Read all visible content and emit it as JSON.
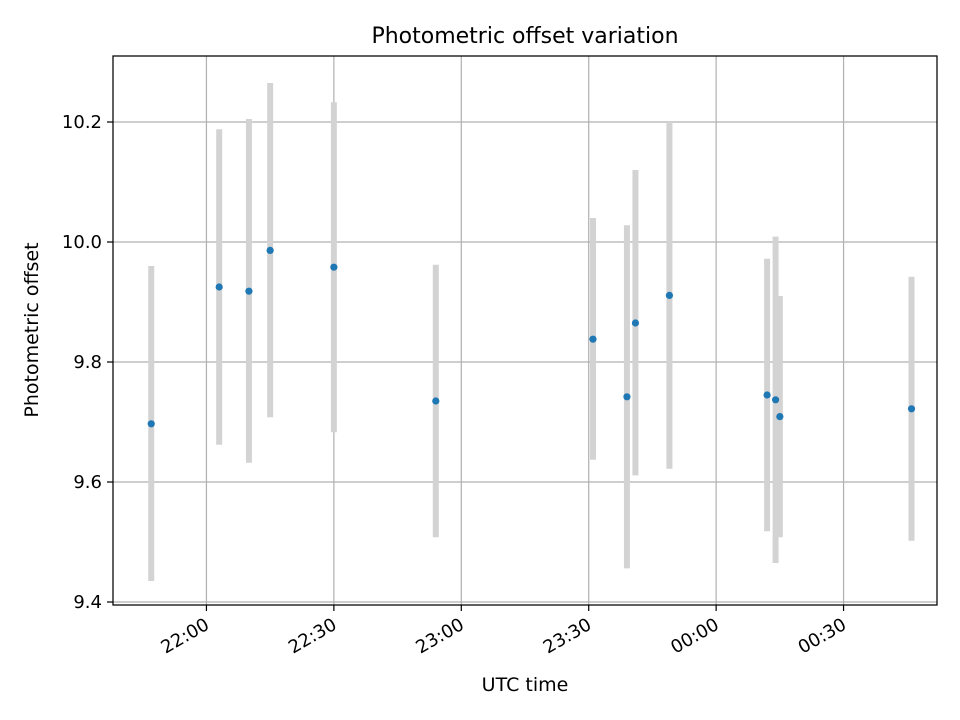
{
  "chart_data": {
    "type": "scatter",
    "title": "Photometric offset variation",
    "xlabel": "UTC time",
    "ylabel": "Photometric offset",
    "xlim": [
      "21:38",
      "00:52"
    ],
    "ylim": [
      9.395,
      10.31
    ],
    "grid": true,
    "x_axis": {
      "ticks": [
        {
          "value": "22:00",
          "label": "22:00"
        },
        {
          "value": "22:30",
          "label": "22:30"
        },
        {
          "value": "23:00",
          "label": "23:00"
        },
        {
          "value": "23:30",
          "label": "23:30"
        },
        {
          "value": "00:00",
          "label": "00:00"
        },
        {
          "value": "00:30",
          "label": "00:30"
        }
      ]
    },
    "y_axis": {
      "ticks": [
        {
          "value": 9.4,
          "label": "9.4"
        },
        {
          "value": 9.6,
          "label": "9.6"
        },
        {
          "value": 9.8,
          "label": "9.8"
        },
        {
          "value": 10.0,
          "label": "10.0"
        },
        {
          "value": 10.2,
          "label": "10.2"
        }
      ]
    },
    "series": [
      {
        "color": "#1f77b4",
        "errorbar_color": "#d3d3d3",
        "points": [
          {
            "x": "21:47",
            "y": 9.697,
            "low": 9.435,
            "high": 9.96
          },
          {
            "x": "22:03",
            "y": 9.925,
            "low": 9.662,
            "high": 10.188
          },
          {
            "x": "22:10",
            "y": 9.918,
            "low": 9.632,
            "high": 10.205
          },
          {
            "x": "22:15",
            "y": 9.986,
            "low": 9.708,
            "high": 10.265
          },
          {
            "x": "22:30",
            "y": 9.958,
            "low": 9.683,
            "high": 10.233
          },
          {
            "x": "22:54",
            "y": 9.735,
            "low": 9.508,
            "high": 9.962
          },
          {
            "x": "23:31",
            "y": 9.838,
            "low": 9.637,
            "high": 10.04
          },
          {
            "x": "23:39",
            "y": 9.742,
            "low": 9.456,
            "high": 10.028
          },
          {
            "x": "23:41",
            "y": 9.865,
            "low": 9.611,
            "high": 10.12
          },
          {
            "x": "23:49",
            "y": 9.911,
            "low": 9.622,
            "high": 10.2
          },
          {
            "x": "00:12",
            "y": 9.745,
            "low": 9.518,
            "high": 9.972
          },
          {
            "x": "00:14",
            "y": 9.737,
            "low": 9.465,
            "high": 10.009
          },
          {
            "x": "00:15",
            "y": 9.709,
            "low": 9.508,
            "high": 9.91
          },
          {
            "x": "00:46",
            "y": 9.722,
            "low": 9.502,
            "high": 9.942
          }
        ]
      }
    ]
  }
}
